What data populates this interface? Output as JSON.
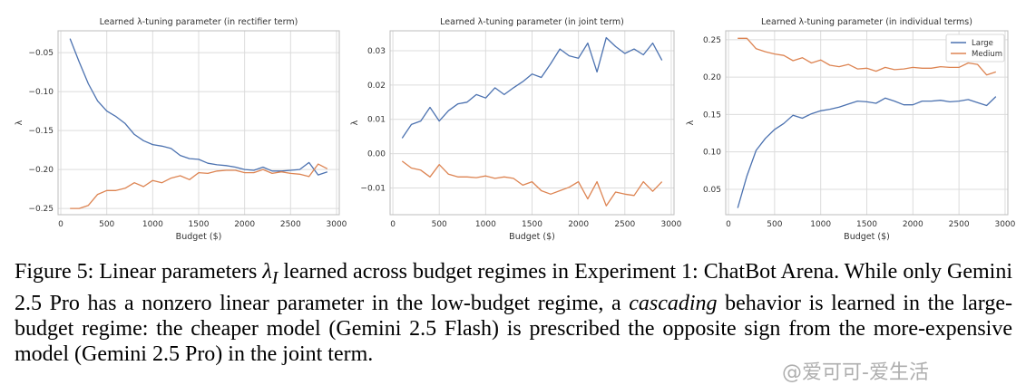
{
  "chart_data": [
    {
      "type": "line",
      "title": "Learned λ-tuning parameter (in rectifier term)",
      "xlabel": "Budget ($)",
      "ylabel": "λ",
      "xlim": [
        -30,
        3030
      ],
      "ylim": [
        -0.258,
        -0.022
      ],
      "xticks": [
        0,
        500,
        1000,
        1500,
        2000,
        2500,
        3000
      ],
      "yticks": [
        -0.25,
        -0.2,
        -0.15,
        -0.1,
        -0.05
      ],
      "ytick_labels": [
        "−0.25",
        "−0.20",
        "−0.15",
        "−0.10",
        "−0.05"
      ],
      "grid": true,
      "legend": null,
      "x": [
        100,
        200,
        300,
        400,
        500,
        600,
        700,
        800,
        900,
        1000,
        1100,
        1200,
        1300,
        1400,
        1500,
        1600,
        1700,
        1800,
        1900,
        2000,
        2100,
        2200,
        2300,
        2400,
        2500,
        2600,
        2700,
        2800,
        2900
      ],
      "series": [
        {
          "color": "#4c72b0",
          "values": [
            -0.032,
            -0.062,
            -0.09,
            -0.112,
            -0.125,
            -0.132,
            -0.141,
            -0.155,
            -0.163,
            -0.168,
            -0.17,
            -0.173,
            -0.182,
            -0.186,
            -0.187,
            -0.192,
            -0.194,
            -0.195,
            -0.197,
            -0.2,
            -0.201,
            -0.197,
            -0.202,
            -0.202,
            -0.201,
            -0.2,
            -0.191,
            -0.207,
            -0.203
          ]
        },
        {
          "color": "#dd8452",
          "values": [
            -0.25,
            -0.25,
            -0.246,
            -0.232,
            -0.227,
            -0.227,
            -0.224,
            -0.217,
            -0.222,
            -0.214,
            -0.217,
            -0.211,
            -0.208,
            -0.213,
            -0.204,
            -0.205,
            -0.202,
            -0.201,
            -0.201,
            -0.204,
            -0.204,
            -0.2,
            -0.205,
            -0.203,
            -0.205,
            -0.206,
            -0.209,
            -0.193,
            -0.199
          ]
        }
      ]
    },
    {
      "type": "line",
      "title": "Learned λ-tuning parameter (in joint term)",
      "xlabel": "Budget ($)",
      "ylabel": "λ",
      "xlim": [
        -30,
        3030
      ],
      "ylim": [
        -0.0178,
        0.0358
      ],
      "xticks": [
        0,
        500,
        1000,
        1500,
        2000,
        2500,
        3000
      ],
      "yticks": [
        -0.01,
        0.0,
        0.01,
        0.02,
        0.03
      ],
      "ytick_labels": [
        "−0.01",
        "0.00",
        "0.01",
        "0.02",
        "0.03"
      ],
      "grid": true,
      "legend": null,
      "x": [
        100,
        200,
        300,
        400,
        500,
        600,
        700,
        800,
        900,
        1000,
        1100,
        1200,
        1300,
        1400,
        1500,
        1600,
        1700,
        1800,
        1900,
        2000,
        2100,
        2200,
        2300,
        2400,
        2500,
        2600,
        2700,
        2800,
        2900
      ],
      "series": [
        {
          "color": "#4c72b0",
          "values": [
            0.0045,
            0.0085,
            0.0095,
            0.0135,
            0.0095,
            0.0125,
            0.0145,
            0.015,
            0.0172,
            0.0162,
            0.0192,
            0.0172,
            0.0192,
            0.021,
            0.0232,
            0.0222,
            0.0262,
            0.0305,
            0.0285,
            0.0278,
            0.0322,
            0.0238,
            0.0338,
            0.0312,
            0.0292,
            0.0305,
            0.0288,
            0.0322,
            0.0272
          ]
        },
        {
          "color": "#dd8452",
          "values": [
            -0.0022,
            -0.0042,
            -0.0048,
            -0.0068,
            -0.0032,
            -0.006,
            -0.0068,
            -0.0068,
            -0.007,
            -0.0065,
            -0.0072,
            -0.0068,
            -0.0072,
            -0.0092,
            -0.0082,
            -0.0108,
            -0.0118,
            -0.0108,
            -0.0098,
            -0.0082,
            -0.0132,
            -0.0082,
            -0.0152,
            -0.0112,
            -0.0118,
            -0.0122,
            -0.0082,
            -0.011,
            -0.0082
          ]
        }
      ]
    },
    {
      "type": "line",
      "title": "Learned λ-tuning parameter (in individual terms)",
      "xlabel": "Budget ($)",
      "ylabel": "λ",
      "xlim": [
        -30,
        3030
      ],
      "ylim": [
        0.016,
        0.262
      ],
      "xticks": [
        0,
        500,
        1000,
        1500,
        2000,
        2500,
        3000
      ],
      "yticks": [
        0.05,
        0.1,
        0.15,
        0.2,
        0.25
      ],
      "ytick_labels": [
        "0.05",
        "0.10",
        "0.15",
        "0.20",
        "0.25"
      ],
      "grid": true,
      "legend": "top-right",
      "x": [
        100,
        200,
        300,
        400,
        500,
        600,
        700,
        800,
        900,
        1000,
        1100,
        1200,
        1300,
        1400,
        1500,
        1600,
        1700,
        1800,
        1900,
        2000,
        2100,
        2200,
        2300,
        2400,
        2500,
        2600,
        2700,
        2800,
        2900
      ],
      "series": [
        {
          "name": "Large",
          "color": "#4c72b0",
          "values": [
            0.025,
            0.068,
            0.102,
            0.118,
            0.13,
            0.138,
            0.149,
            0.145,
            0.151,
            0.155,
            0.157,
            0.16,
            0.164,
            0.168,
            0.167,
            0.165,
            0.172,
            0.168,
            0.163,
            0.163,
            0.168,
            0.168,
            0.169,
            0.167,
            0.168,
            0.17,
            0.166,
            0.162,
            0.174
          ]
        },
        {
          "name": "Medium",
          "color": "#dd8452",
          "values": [
            0.252,
            0.252,
            0.238,
            0.234,
            0.231,
            0.229,
            0.222,
            0.226,
            0.219,
            0.223,
            0.216,
            0.214,
            0.217,
            0.211,
            0.212,
            0.208,
            0.213,
            0.21,
            0.211,
            0.213,
            0.212,
            0.212,
            0.214,
            0.213,
            0.213,
            0.219,
            0.217,
            0.203,
            0.207
          ]
        }
      ]
    }
  ],
  "caption": {
    "prefix": "Figure 5: Linear parameters ",
    "symbol": "λ",
    "symbol_sub": "I",
    "mid1": " learned across budget regimes in Experiment 1: ChatBot Arena. While only Gemini 2.5 Pro has a nonzero linear parameter in the low-budget regime, a ",
    "emph": "cascading",
    "rest": " behavior is learned in the large-budget regime: the cheaper model (Gemini 2.5 Flash) is prescribed the opposite sign from the more-expensive model (Gemini 2.5 Pro) in the joint term."
  },
  "watermark": "@爱可可-爱生活"
}
